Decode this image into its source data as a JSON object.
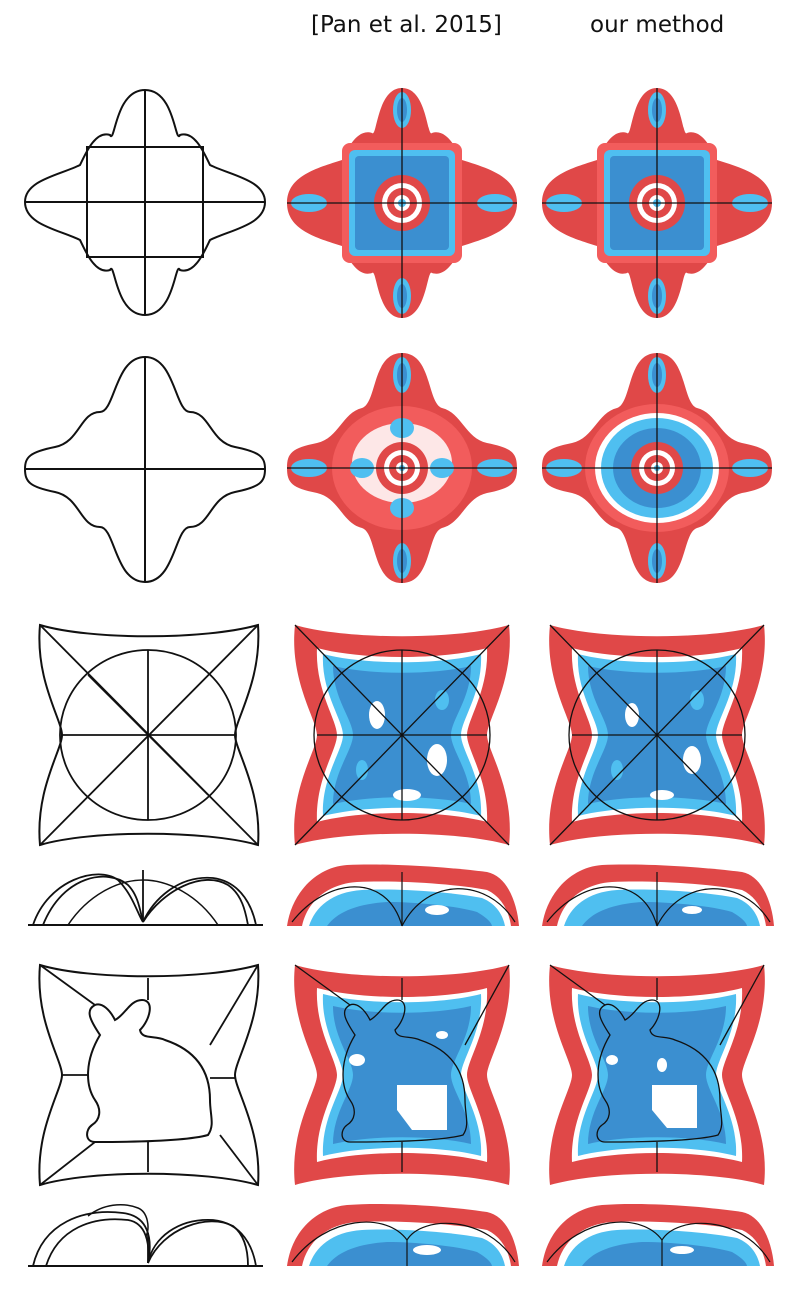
{
  "figure": {
    "column_headers": {
      "pan": "[Pan et al. 2015]",
      "ours": "our method"
    }
  },
  "colors": {
    "red_dark": "#e04848",
    "red_light": "#f25c5c",
    "blue_dark": "#3b8fd0",
    "blue_light": "#4fbff0",
    "white_band": "#ffffff",
    "outline": "#111111"
  }
}
